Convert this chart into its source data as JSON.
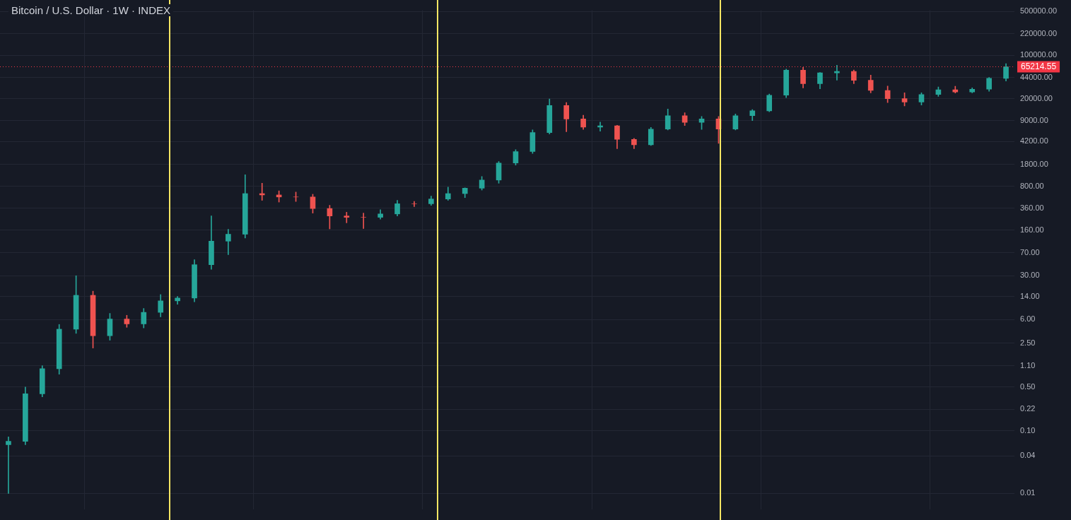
{
  "chart_data": {
    "type": "candlestick",
    "title": "Bitcoin / U.S. Dollar · 1W · INDEX",
    "categories": [
      null,
      null,
      null,
      null,
      null,
      null,
      null,
      null,
      null,
      null,
      null,
      null,
      null,
      null,
      null,
      null,
      null,
      null,
      null,
      null,
      null,
      null,
      null,
      null,
      null,
      null,
      null,
      null,
      null,
      null,
      null,
      null,
      null,
      null,
      null,
      null,
      null,
      null,
      null,
      null,
      null,
      null,
      null,
      null,
      null,
      null,
      null,
      null,
      null,
      null,
      null,
      null,
      null,
      null,
      null,
      null,
      null,
      null,
      null,
      null
    ],
    "ohlc": [
      [
        0.06,
        0.08,
        0.01,
        0.068
      ],
      [
        0.068,
        0.5,
        0.06,
        0.39
      ],
      [
        0.39,
        1.1,
        0.35,
        0.98
      ],
      [
        0.98,
        5,
        0.8,
        4.2
      ],
      [
        4.2,
        30,
        3.6,
        14.6
      ],
      [
        14.6,
        17,
        2.1,
        3.3
      ],
      [
        3.3,
        7.5,
        2.8,
        6.1
      ],
      [
        6.1,
        7,
        4.5,
        5.1
      ],
      [
        5.1,
        9,
        4.4,
        7.8
      ],
      [
        7.8,
        15,
        6.6,
        11.9
      ],
      [
        11.9,
        14,
        10.5,
        13.2
      ],
      [
        13.2,
        54,
        11.5,
        45
      ],
      [
        45,
        270,
        38,
        107
      ],
      [
        107,
        165,
        65,
        138
      ],
      [
        138,
        1230,
        120,
        615
      ],
      [
        615,
        900,
        480,
        585
      ],
      [
        585,
        680,
        450,
        543
      ],
      [
        543,
        650,
        460,
        543
      ],
      [
        543,
        600,
        300,
        355
      ],
      [
        355,
        400,
        168,
        270
      ],
      [
        270,
        310,
        210,
        257
      ],
      [
        257,
        300,
        170,
        257
      ],
      [
        257,
        340,
        240,
        291
      ],
      [
        291,
        480,
        270,
        423
      ],
      [
        423,
        460,
        380,
        423
      ],
      [
        423,
        560,
        400,
        504
      ],
      [
        504,
        780,
        480,
        615
      ],
      [
        615,
        760,
        530,
        750
      ],
      [
        750,
        1150,
        700,
        1012
      ],
      [
        1012,
        2000,
        900,
        1890
      ],
      [
        1890,
        3100,
        1750,
        2885
      ],
      [
        2885,
        6400,
        2700,
        5800
      ],
      [
        5800,
        20000,
        5500,
        15700
      ],
      [
        15700,
        17500,
        6000,
        9570
      ],
      [
        9570,
        11000,
        6500,
        7080
      ],
      [
        7080,
        8500,
        6100,
        7450
      ],
      [
        7450,
        7600,
        3200,
        4520
      ],
      [
        4520,
        4700,
        3200,
        3700
      ],
      [
        3700,
        7000,
        3600,
        6580
      ],
      [
        6580,
        13800,
        6400,
        10800
      ],
      [
        10800,
        12000,
        7500,
        8430
      ],
      [
        8430,
        10500,
        6500,
        9570
      ],
      [
        9570,
        10500,
        3900,
        6580
      ],
      [
        6580,
        11500,
        6400,
        10800
      ],
      [
        10800,
        13500,
        9000,
        12900
      ],
      [
        12900,
        24000,
        12500,
        22900
      ],
      [
        22900,
        60000,
        21000,
        57700
      ],
      [
        57700,
        64000,
        30000,
        35000
      ],
      [
        35000,
        53000,
        29000,
        52100
      ],
      [
        52100,
        69000,
        40000,
        54800
      ],
      [
        54800,
        58000,
        35000,
        39600
      ],
      [
        39600,
        48000,
        25000,
        27300
      ],
      [
        27300,
        32000,
        17500,
        20200
      ],
      [
        20200,
        25000,
        15500,
        17800
      ],
      [
        17800,
        25000,
        16000,
        23500
      ],
      [
        23500,
        31000,
        22000,
        27900
      ],
      [
        27900,
        31800,
        24900,
        25900
      ],
      [
        25900,
        30000,
        25000,
        28600
      ],
      [
        28600,
        44000,
        26500,
        42700
      ],
      [
        42700,
        73000,
        38500,
        65214.55
      ]
    ],
    "colors": [
      "#26a69a",
      "#26a69a",
      "#26a69a",
      "#26a69a",
      "#26a69a",
      "#ef5350",
      "#26a69a",
      "#ef5350",
      "#26a69a",
      "#26a69a",
      "#26a69a",
      "#26a69a",
      "#26a69a",
      "#26a69a",
      "#26a69a",
      "#ef5350",
      "#ef5350",
      "#ef5350",
      "#ef5350",
      "#ef5350",
      "#ef5350",
      "#ef5350",
      "#26a69a",
      "#26a69a",
      "#ef5350",
      "#26a69a",
      "#26a69a",
      "#26a69a",
      "#26a69a",
      "#26a69a",
      "#26a69a",
      "#26a69a",
      "#26a69a",
      "#ef5350",
      "#ef5350",
      "#26a69a",
      "#ef5350",
      "#ef5350",
      "#26a69a",
      "#26a69a",
      "#ef5350",
      "#26a69a",
      "#ef5350",
      "#26a69a",
      "#26a69a",
      "#26a69a",
      "#26a69a",
      "#ef5350",
      "#26a69a",
      "#26a69a",
      "#ef5350",
      "#ef5350",
      "#ef5350",
      "#ef5350",
      "#26a69a",
      "#26a69a",
      "#ef5350",
      "#26a69a",
      "#26a69a",
      "#26a69a"
    ],
    "log": true,
    "ylim": [
      0.0055,
      520000
    ],
    "yticks": [
      {
        "value": 0.01,
        "label": "0.01"
      },
      {
        "value": 0.04,
        "label": "0.04"
      },
      {
        "value": 0.1,
        "label": "0.10"
      },
      {
        "value": 0.22,
        "label": "0.22"
      },
      {
        "value": 0.5,
        "label": "0.50"
      },
      {
        "value": 1.1,
        "label": "1.10"
      },
      {
        "value": 2.5,
        "label": "2.50"
      },
      {
        "value": 6,
        "label": "6.00"
      },
      {
        "value": 14,
        "label": "14.00"
      },
      {
        "value": 30,
        "label": "30.00"
      },
      {
        "value": 70,
        "label": "70.00"
      },
      {
        "value": 160,
        "label": "160.00"
      },
      {
        "value": 360,
        "label": "360.00"
      },
      {
        "value": 800,
        "label": "800.00"
      },
      {
        "value": 1800,
        "label": "1800.00"
      },
      {
        "value": 4200,
        "label": "4200.00"
      },
      {
        "value": 9000,
        "label": "9000.00"
      },
      {
        "value": 20000,
        "label": "20000.00"
      },
      {
        "value": 44000,
        "label": "44000.00"
      },
      {
        "value": 100000,
        "label": "100000.00"
      },
      {
        "value": 220000,
        "label": "220000.00"
      },
      {
        "value": 500000,
        "label": "500000.00"
      }
    ],
    "ref_lines": [
      {
        "axis": "y",
        "value": 65214.55,
        "label": "65214.55",
        "color": "#f23645",
        "line_style": "dotted"
      }
    ],
    "grid": true,
    "tick_labels": "y"
  }
}
